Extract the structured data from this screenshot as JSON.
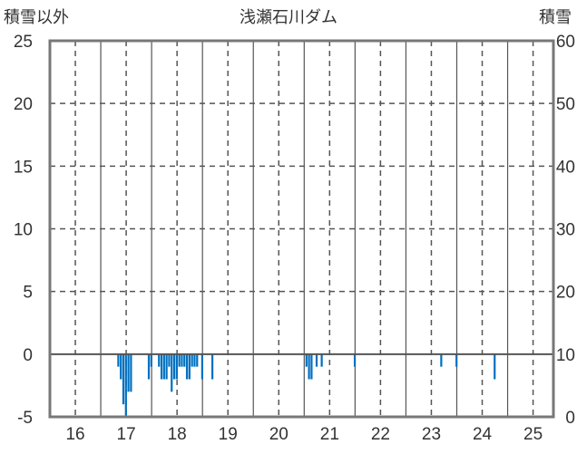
{
  "chart_data": {
    "type": "bar",
    "title": "浅瀬石川ダム",
    "ylabel_left": "積雪以外",
    "ylabel_right": "積雪",
    "ylim_left": [
      -5,
      25
    ],
    "ylim_right": [
      0,
      60
    ],
    "left_ticks": [
      -5,
      0,
      5,
      10,
      15,
      20,
      25
    ],
    "right_ticks": [
      0,
      10,
      20,
      30,
      40,
      50,
      60
    ],
    "xlim": [
      15.5,
      25.4
    ],
    "x_ticks": [
      16,
      17,
      18,
      19,
      20,
      21,
      22,
      23,
      24,
      25
    ],
    "grid": true,
    "series": [
      {
        "axis": "left",
        "color": "#0070c0",
        "bar_width": 0.05,
        "x": [
          16.85,
          16.9,
          16.95,
          17.0,
          17.05,
          17.1,
          17.45,
          17.5,
          17.65,
          17.7,
          17.75,
          17.8,
          17.85,
          17.9,
          17.95,
          18.0,
          18.05,
          18.1,
          18.15,
          18.2,
          18.25,
          18.3,
          18.35,
          18.4,
          18.5,
          18.7,
          20.55,
          20.6,
          20.65,
          20.75,
          20.85,
          21.5,
          23.2,
          23.5,
          24.25
        ],
        "values": [
          -1,
          -2,
          -4,
          -5,
          -3,
          -3,
          -2,
          -1,
          -1,
          -2,
          -2,
          -2,
          -1,
          -3,
          -2,
          -2,
          -1,
          -1,
          -1,
          -2,
          -2,
          -1,
          -1,
          -1,
          -2,
          -2,
          -1,
          -2,
          -2,
          -1,
          -1,
          -1,
          -1,
          -1,
          -2
        ]
      }
    ]
  }
}
